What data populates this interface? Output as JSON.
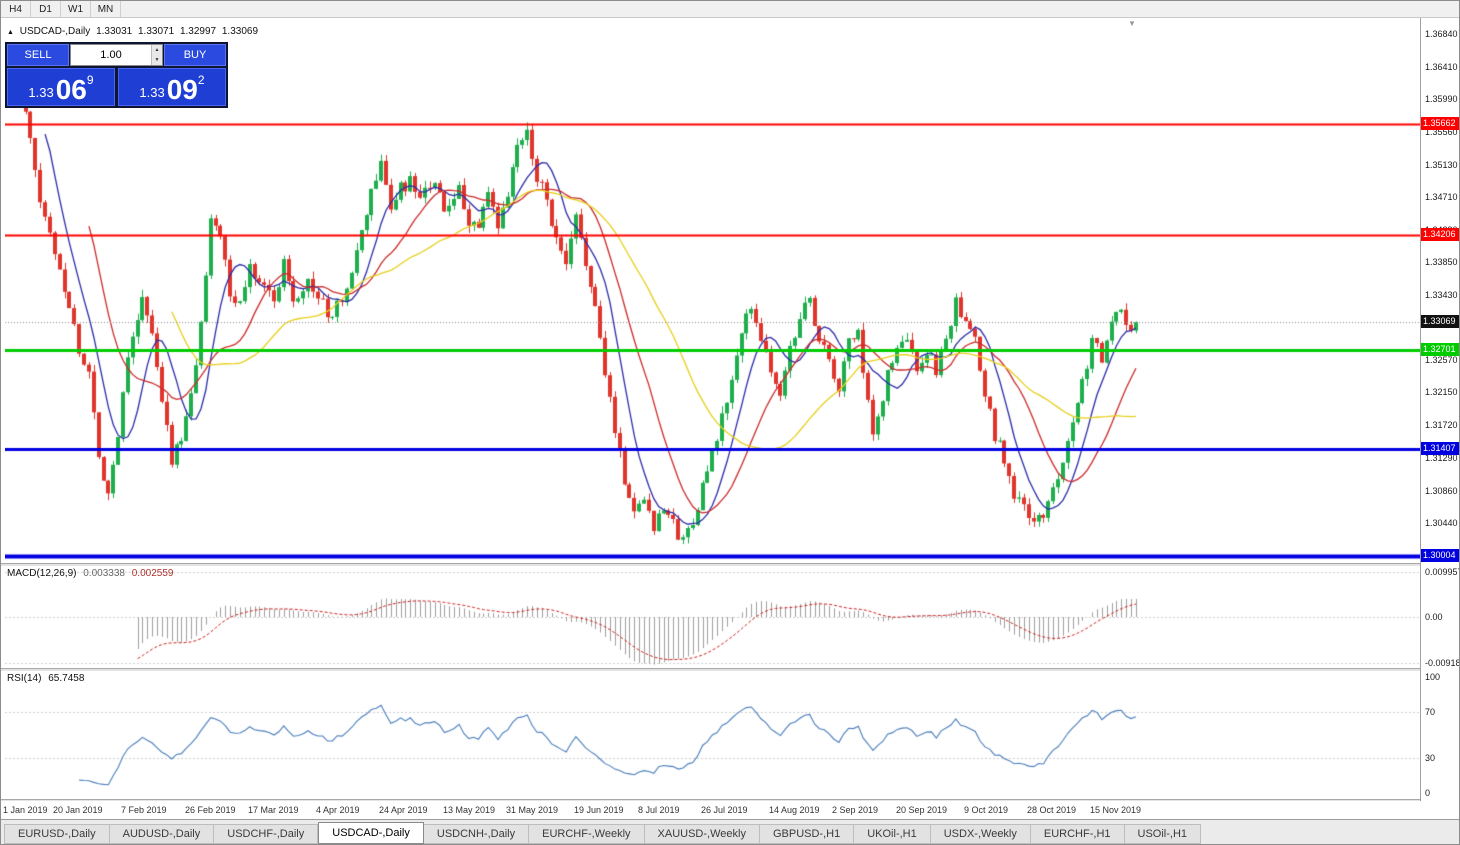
{
  "toolbar": {
    "timeframes": [
      "H4",
      "D1",
      "W1",
      "MN"
    ]
  },
  "chart_header": {
    "marker": "▲",
    "symbol": "USDCAD-,Daily",
    "open": "1.33031",
    "high": "1.33071",
    "low": "1.32997",
    "close": "1.33069"
  },
  "trade_panel": {
    "sell_label": "SELL",
    "buy_label": "BUY",
    "volume": "1.00",
    "sell_price": {
      "small": "1.33",
      "big": "06",
      "sup": "9"
    },
    "buy_price": {
      "small": "1.33",
      "big": "09",
      "sup": "2"
    }
  },
  "price_axis": {
    "ticks": [
      "1.36840",
      "1.36410",
      "1.35990",
      "1.35560",
      "1.35130",
      "1.34710",
      "1.34280",
      "1.33850",
      "1.33430",
      "1.32570",
      "1.32150",
      "1.31720",
      "1.31290",
      "1.30860",
      "1.30440"
    ],
    "current_price": "1.33069"
  },
  "macd_panel": {
    "title": "MACD(12,26,9)",
    "macd_value": "0.003338",
    "signal_value": "0.002559",
    "axis_labels": [
      "0.009957",
      "0.00",
      "-0.009180"
    ]
  },
  "rsi_panel": {
    "title": "RSI(14)",
    "value": "65.7458",
    "axis_labels": [
      "100",
      "70",
      "30",
      "0"
    ]
  },
  "date_axis": [
    "1 Jan 2019",
    "20 Jan 2019",
    "7 Feb 2019",
    "26 Feb 2019",
    "17 Mar 2019",
    "4 Apr 2019",
    "24 Apr 2019",
    "13 May 2019",
    "31 May 2019",
    "19 Jun 2019",
    "8 Jul 2019",
    "26 Jul 2019",
    "14 Aug 2019",
    "2 Sep 2019",
    "20 Sep 2019",
    "9 Oct 2019",
    "28 Oct 2019",
    "15 Nov 2019"
  ],
  "tabs": [
    {
      "label": "EURUSD-,Daily",
      "active": false
    },
    {
      "label": "AUDUSD-,Daily",
      "active": false
    },
    {
      "label": "USDCHF-,Daily",
      "active": false
    },
    {
      "label": "USDCAD-,Daily",
      "active": true
    },
    {
      "label": "USDCNH-,Daily",
      "active": false
    },
    {
      "label": "EURCHF-,Weekly",
      "active": false
    },
    {
      "label": "XAUUSD-,Weekly",
      "active": false
    },
    {
      "label": "GBPUSD-,H1",
      "active": false
    },
    {
      "label": "UKOil-,H1",
      "active": false
    },
    {
      "label": "USDX-,Weekly",
      "active": false
    },
    {
      "label": "EURCHF-,H1",
      "active": false
    },
    {
      "label": "USOil-,H1",
      "active": false
    }
  ],
  "chart_data": {
    "type": "candlestick",
    "symbol": "USDCAD",
    "timeframe": "Daily",
    "title": "USDCAD-,Daily",
    "last_ohlc": {
      "open": 1.33031,
      "high": 1.33071,
      "low": 1.32997,
      "close": 1.33069
    },
    "y_axis": {
      "min": 1.2992,
      "max": 1.3705,
      "tick_step": 0.0043
    },
    "x_labels": [
      "1 Jan 2019",
      "20 Jan 2019",
      "7 Feb 2019",
      "26 Feb 2019",
      "17 Mar 2019",
      "4 Apr 2019",
      "24 Apr 2019",
      "13 May 2019",
      "31 May 2019",
      "19 Jun 2019",
      "8 Jul 2019",
      "26 Jul 2019",
      "14 Aug 2019",
      "2 Sep 2019",
      "20 Sep 2019",
      "9 Oct 2019",
      "28 Oct 2019",
      "15 Nov 2019"
    ],
    "horizontal_lines": [
      {
        "price": 1.35662,
        "label": "1.35662",
        "color": "#ff0000",
        "width": 2
      },
      {
        "price": 1.34206,
        "label": "1.34206",
        "color": "#ff0000",
        "width": 2
      },
      {
        "price": 1.32701,
        "label": "1.32701",
        "color": "#00cc00",
        "width": 3
      },
      {
        "price": 1.31407,
        "label": "1.31407",
        "color": "#0000e0",
        "width": 3
      },
      {
        "price": 1.30004,
        "label": "1.30004",
        "color": "#0000e0",
        "width": 4
      }
    ],
    "overlays": {
      "moving_averages": [
        {
          "period": 8,
          "color": "#2b2ba8"
        },
        {
          "period": 17,
          "color": "#cc2a2a"
        },
        {
          "period": 34,
          "color": "#e6cf1b"
        }
      ]
    },
    "indicators": [
      {
        "name": "MACD",
        "params": [
          12,
          26,
          9
        ],
        "current_macd": 0.003338,
        "current_signal": 0.002559
      },
      {
        "name": "RSI",
        "params": [
          14
        ],
        "current": 65.7458
      }
    ],
    "candles": {
      "count": 232,
      "note": "approximate daily close path reconstructed from the chart; waypoints are [candle index, price]",
      "waypoints": [
        [
          0,
          1.36
        ],
        [
          1,
          1.3655
        ],
        [
          3,
          1.358
        ],
        [
          6,
          1.3465
        ],
        [
          9,
          1.34
        ],
        [
          12,
          1.333
        ],
        [
          14,
          1.327
        ],
        [
          16,
          1.324
        ],
        [
          18,
          1.313
        ],
        [
          20,
          1.3085
        ],
        [
          22,
          1.316
        ],
        [
          24,
          1.327
        ],
        [
          27,
          1.3335
        ],
        [
          29,
          1.329
        ],
        [
          31,
          1.32
        ],
        [
          33,
          1.313
        ],
        [
          35,
          1.315
        ],
        [
          37,
          1.321
        ],
        [
          39,
          1.33
        ],
        [
          41,
          1.345
        ],
        [
          43,
          1.342
        ],
        [
          45,
          1.334
        ],
        [
          47,
          1.333
        ],
        [
          49,
          1.338
        ],
        [
          52,
          1.336
        ],
        [
          54,
          1.333
        ],
        [
          56,
          1.339
        ],
        [
          58,
          1.334
        ],
        [
          61,
          1.336
        ],
        [
          64,
          1.333
        ],
        [
          66,
          1.331
        ],
        [
          68,
          1.334
        ],
        [
          70,
          1.337
        ],
        [
          72,
          1.342
        ],
        [
          74,
          1.348
        ],
        [
          76,
          1.351
        ],
        [
          78,
          1.346
        ],
        [
          80,
          1.348
        ],
        [
          82,
          1.349
        ],
        [
          84,
          1.346
        ],
        [
          86,
          1.349
        ],
        [
          88,
          1.347
        ],
        [
          90,
          1.345
        ],
        [
          92,
          1.348
        ],
        [
          94,
          1.344
        ],
        [
          96,
          1.343
        ],
        [
          98,
          1.347
        ],
        [
          100,
          1.343
        ],
        [
          102,
          1.347
        ],
        [
          104,
          1.354
        ],
        [
          106,
          1.355
        ],
        [
          108,
          1.35
        ],
        [
          110,
          1.347
        ],
        [
          112,
          1.341
        ],
        [
          114,
          1.338
        ],
        [
          116,
          1.344
        ],
        [
          118,
          1.339
        ],
        [
          120,
          1.332
        ],
        [
          122,
          1.324
        ],
        [
          124,
          1.317
        ],
        [
          126,
          1.31
        ],
        [
          128,
          1.306
        ],
        [
          130,
          1.308
        ],
        [
          132,
          1.304
        ],
        [
          134,
          1.307
        ],
        [
          136,
          1.304
        ],
        [
          138,
          1.302
        ],
        [
          140,
          1.305
        ],
        [
          142,
          1.309
        ],
        [
          144,
          1.313
        ],
        [
          146,
          1.318
        ],
        [
          148,
          1.323
        ],
        [
          150,
          1.329
        ],
        [
          152,
          1.333
        ],
        [
          154,
          1.329
        ],
        [
          156,
          1.324
        ],
        [
          158,
          1.321
        ],
        [
          160,
          1.327
        ],
        [
          162,
          1.332
        ],
        [
          164,
          1.333
        ],
        [
          166,
          1.329
        ],
        [
          168,
          1.325
        ],
        [
          170,
          1.322
        ],
        [
          172,
          1.328
        ],
        [
          174,
          1.329
        ],
        [
          177,
          1.315
        ],
        [
          180,
          1.324
        ],
        [
          182,
          1.327
        ],
        [
          184,
          1.328
        ],
        [
          186,
          1.325
        ],
        [
          188,
          1.327
        ],
        [
          190,
          1.324
        ],
        [
          192,
          1.329
        ],
        [
          194,
          1.333
        ],
        [
          196,
          1.33
        ],
        [
          198,
          1.328
        ],
        [
          200,
          1.321
        ],
        [
          202,
          1.316
        ],
        [
          204,
          1.313
        ],
        [
          206,
          1.308
        ],
        [
          208,
          1.306
        ],
        [
          210,
          1.305
        ],
        [
          212,
          1.3045
        ],
        [
          214,
          1.309
        ],
        [
          216,
          1.313
        ],
        [
          218,
          1.318
        ],
        [
          220,
          1.323
        ],
        [
          222,
          1.328
        ],
        [
          224,
          1.326
        ],
        [
          226,
          1.33
        ],
        [
          228,
          1.333
        ],
        [
          230,
          1.329
        ],
        [
          231,
          1.33069
        ]
      ]
    },
    "style": {
      "up_color": "#1fae4e",
      "down_color": "#e0352c",
      "histogram_color": "#9e9e9e",
      "signal_color": "#cc2222",
      "rsi_color": "#4a7ebb",
      "current_price_line": "#909090"
    }
  }
}
